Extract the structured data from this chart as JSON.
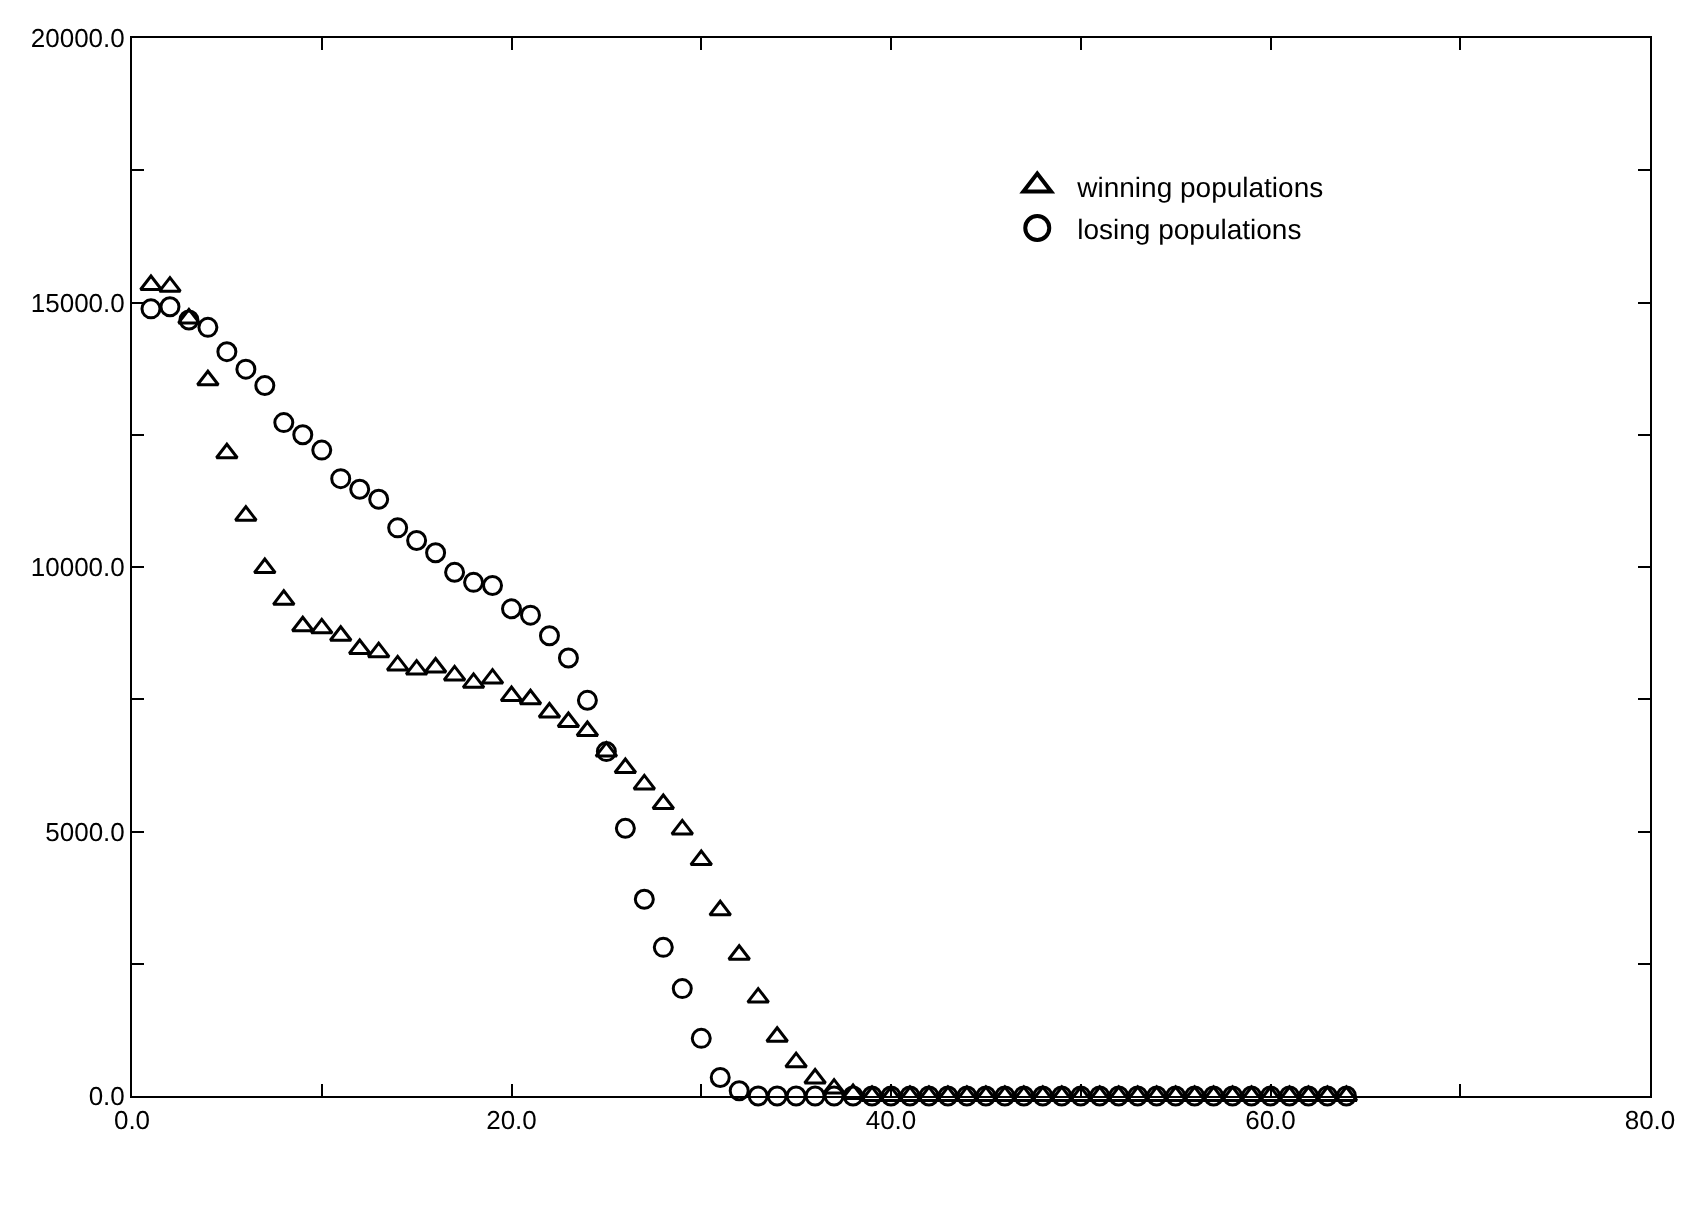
{
  "chart_data": {
    "type": "scatter",
    "xlim": [
      0,
      80
    ],
    "xticks": [
      {
        "value": 0,
        "label": "0.0"
      },
      {
        "value": 10,
        "label": null
      },
      {
        "value": 20,
        "label": "20.0"
      },
      {
        "value": 30,
        "label": null
      },
      {
        "value": 40,
        "label": "40.0"
      },
      {
        "value": 50,
        "label": null
      },
      {
        "value": 60,
        "label": "60.0"
      },
      {
        "value": 70,
        "label": null
      },
      {
        "value": 80,
        "label": "80.0"
      }
    ],
    "ylim": [
      0,
      20000
    ],
    "yticks": [
      {
        "value": 0,
        "label": "0.0"
      },
      {
        "value": 2500,
        "label": null
      },
      {
        "value": 5000,
        "label": "5000.0"
      },
      {
        "value": 7500,
        "label": null
      },
      {
        "value": 10000,
        "label": "10000.0"
      },
      {
        "value": 12500,
        "label": null
      },
      {
        "value": 15000,
        "label": "15000.0"
      },
      {
        "value": 17500,
        "label": null
      },
      {
        "value": 20000,
        "label": "20000.0"
      }
    ],
    "x": [
      1,
      2,
      3,
      4,
      5,
      6,
      7,
      8,
      9,
      10,
      11,
      12,
      13,
      14,
      15,
      16,
      17,
      18,
      19,
      20,
      21,
      22,
      23,
      24,
      25,
      26,
      27,
      28,
      29,
      30,
      31,
      32,
      33,
      34,
      35,
      36,
      37,
      38,
      39,
      40,
      41,
      42,
      43,
      44,
      45,
      46,
      47,
      48,
      49,
      50,
      51,
      52,
      53,
      54,
      55,
      56,
      57,
      58,
      59,
      60,
      61,
      62,
      63,
      64
    ],
    "legend": "top right",
    "series": [
      {
        "name": "winning populations",
        "color": "#000000",
        "marker": "triangle",
        "values": [
          15330,
          15300,
          14700,
          13530,
          12150,
          10970,
          9980,
          9380,
          8880,
          8840,
          8700,
          8450,
          8390,
          8140,
          8060,
          8100,
          7950,
          7810,
          7890,
          7560,
          7500,
          7250,
          7070,
          6900,
          6510,
          6200,
          5890,
          5520,
          5040,
          4460,
          3510,
          2670,
          1860,
          1120,
          640,
          330,
          140,
          40,
          0,
          0,
          0,
          0,
          0,
          0,
          0,
          0,
          0,
          0,
          0,
          0,
          0,
          0,
          0,
          0,
          0,
          0,
          0,
          0,
          0,
          0,
          0,
          0,
          0,
          0
        ]
      },
      {
        "name": "losing populations",
        "color": "#000000",
        "marker": "circle",
        "values": [
          14880,
          14920,
          14670,
          14530,
          14070,
          13740,
          13430,
          12730,
          12500,
          12210,
          11670,
          11470,
          11280,
          10740,
          10500,
          10270,
          9900,
          9710,
          9650,
          9210,
          9090,
          8700,
          8280,
          7480,
          6510,
          5060,
          3720,
          2810,
          2030,
          1090,
          350,
          100,
          0,
          0,
          0,
          0,
          0,
          0,
          0,
          0,
          0,
          0,
          0,
          0,
          0,
          0,
          0,
          0,
          0,
          0,
          0,
          0,
          0,
          0,
          0,
          0,
          0,
          0,
          0,
          0,
          0,
          0,
          0,
          0
        ]
      }
    ]
  }
}
